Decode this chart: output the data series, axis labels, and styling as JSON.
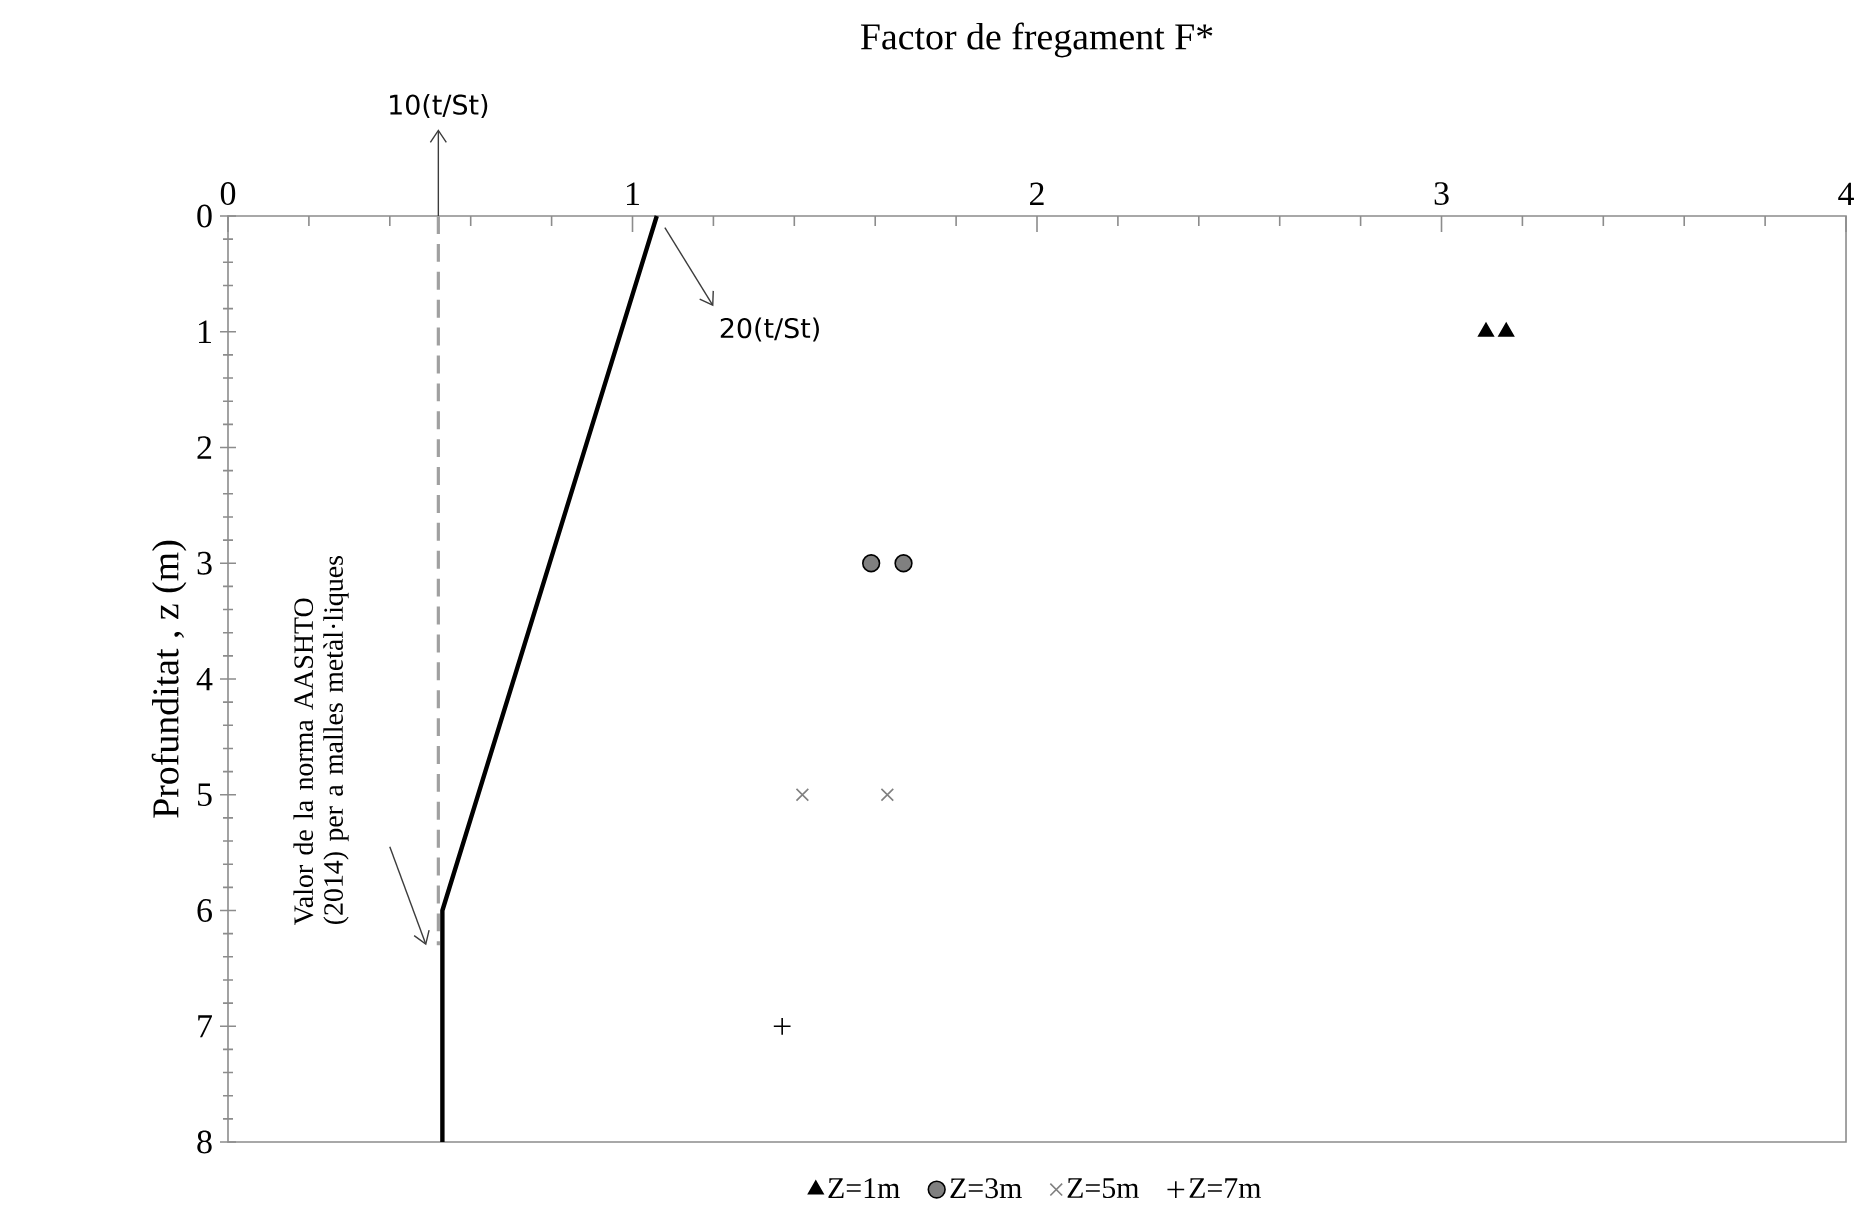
{
  "chart_data": {
    "type": "scatter",
    "xlabel": "Factor de fregament F*",
    "ylabel": "Profunditat , z (m)",
    "xlim": [
      0,
      4
    ],
    "xticks": [
      0,
      1,
      2,
      3,
      4
    ],
    "ylim": [
      8,
      0
    ],
    "yticks": [
      0,
      1,
      2,
      3,
      4,
      5,
      6,
      7,
      8
    ],
    "grid": false,
    "legend": "bottom",
    "series": [
      {
        "type": "line",
        "color": "#000000",
        "line_style": "solid",
        "marker": "none",
        "x": [
          1.06,
          0.53,
          0.53
        ],
        "values": [
          0,
          6,
          8
        ]
      },
      {
        "name": "Z=1m",
        "color": "#000000",
        "marker": "triangle",
        "x": [
          3.11,
          3.16
        ],
        "values": [
          1,
          1
        ]
      },
      {
        "name": "Z=3m",
        "color": "#808080",
        "marker": "circle",
        "x": [
          1.59,
          1.67
        ],
        "values": [
          3,
          3
        ]
      },
      {
        "name": "Z=5m",
        "color": "#808080",
        "marker": "cross",
        "x": [
          1.42,
          1.63
        ],
        "values": [
          5,
          5
        ]
      },
      {
        "name": "Z=7m",
        "color": "#000000",
        "marker": "plus",
        "x": [
          1.37
        ],
        "values": [
          7
        ]
      }
    ],
    "ref_lines": [
      {
        "axis": "x",
        "value": 0.52,
        "color": "#a0a0a0",
        "line_style": "dashed"
      }
    ],
    "annotations": [
      {
        "text": "10(t/St)",
        "x": 0.52,
        "y": 0
      },
      {
        "text": "20(t/St)",
        "x": 1.06,
        "y": 0
      },
      "Valor de la norma AASHTO (2014) per a malles metàl·liques"
    ]
  }
}
